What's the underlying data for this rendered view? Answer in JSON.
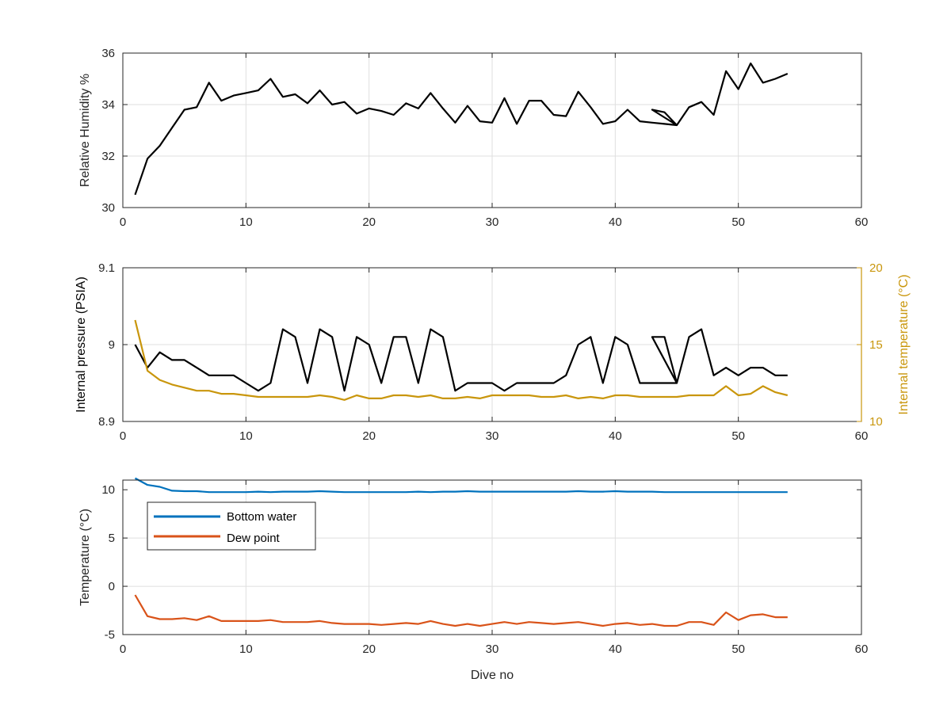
{
  "colors": {
    "black_series": "#000000",
    "internal_temp": "#c9960c",
    "internal_temp_axis": "#c9960c",
    "bottom_water": "#0072bd",
    "dew_point": "#d95319",
    "grid": "#dfdfdf",
    "axis": "#262626"
  },
  "chart_data": [
    {
      "type": "line",
      "xlabel": "",
      "ylabel": "Relative Humidity %",
      "xlim": [
        0,
        60
      ],
      "ylim": [
        30,
        36
      ],
      "xticks": [
        0,
        10,
        20,
        30,
        40,
        50,
        60
      ],
      "yticks": [
        30,
        32,
        34,
        36
      ],
      "grid": true,
      "series": [
        {
          "color_key": "black_series",
          "x": [
            1,
            2,
            3,
            4,
            5,
            6,
            7,
            8,
            9,
            10,
            11,
            12,
            13,
            14,
            15,
            16,
            17,
            18,
            19,
            20,
            21,
            22,
            23,
            24,
            25,
            26,
            27,
            28,
            29,
            30,
            31,
            32,
            33,
            34,
            35,
            36,
            37,
            38,
            39,
            40,
            41,
            42,
            43,
            44,
            45,
            43,
            44,
            45,
            46,
            47,
            48,
            49,
            50,
            51,
            52,
            53,
            54
          ],
          "y": [
            30.5,
            31.9,
            32.4,
            33.1,
            33.8,
            33.9,
            34.85,
            34.15,
            34.35,
            34.45,
            34.55,
            35.0,
            34.3,
            34.4,
            34.05,
            34.55,
            34.0,
            34.1,
            33.65,
            33.85,
            33.75,
            33.6,
            34.05,
            33.85,
            34.45,
            33.85,
            33.3,
            33.95,
            33.35,
            33.3,
            34.25,
            33.25,
            34.15,
            34.15,
            33.6,
            33.55,
            34.5,
            33.9,
            33.25,
            33.35,
            33.8,
            33.35,
            33.3,
            33.25,
            33.2,
            33.8,
            33.7,
            33.2,
            33.9,
            34.1,
            33.6,
            35.3,
            34.6,
            35.6,
            34.85,
            35.0,
            35.2
          ]
        }
      ]
    },
    {
      "type": "line",
      "xlabel": "",
      "ylabel": "Internal pressure (PSIA)",
      "y2label": "Internal temperature (°C)",
      "xlim": [
        0,
        60
      ],
      "ylim": [
        8.9,
        9.1
      ],
      "y2lim": [
        10,
        20
      ],
      "xticks": [
        0,
        10,
        20,
        30,
        40,
        50,
        60
      ],
      "yticks": [
        8.9,
        9,
        9.1
      ],
      "ytick_labels": [
        "8.9",
        "9",
        "9.1"
      ],
      "y2ticks": [
        10,
        15,
        20
      ],
      "grid": true,
      "series": [
        {
          "axis": "left",
          "color_key": "black_series",
          "x": [
            1,
            2,
            3,
            4,
            5,
            6,
            7,
            8,
            9,
            10,
            11,
            12,
            13,
            14,
            15,
            16,
            17,
            18,
            19,
            20,
            21,
            22,
            23,
            24,
            25,
            26,
            27,
            28,
            29,
            30,
            31,
            32,
            33,
            34,
            35,
            36,
            37,
            38,
            39,
            40,
            41,
            42,
            43,
            44,
            45,
            43,
            44,
            45,
            46,
            47,
            48,
            49,
            50,
            51,
            52,
            53,
            54
          ],
          "y": [
            9.0,
            8.97,
            8.99,
            8.98,
            8.98,
            8.97,
            8.96,
            8.96,
            8.96,
            8.95,
            8.94,
            8.95,
            9.02,
            9.01,
            8.95,
            9.02,
            9.01,
            8.94,
            9.01,
            9.0,
            8.95,
            9.01,
            9.01,
            8.95,
            9.02,
            9.01,
            8.94,
            8.95,
            8.95,
            8.95,
            8.94,
            8.95,
            8.95,
            8.95,
            8.95,
            8.96,
            9.0,
            9.01,
            8.95,
            9.01,
            9.0,
            8.95,
            8.95,
            8.95,
            8.95,
            9.01,
            9.01,
            8.95,
            9.01,
            9.02,
            8.96,
            8.97,
            8.96,
            8.97,
            8.97,
            8.96,
            8.96
          ]
        },
        {
          "axis": "right",
          "color_key": "internal_temp",
          "x": [
            1,
            2,
            3,
            4,
            5,
            6,
            7,
            8,
            9,
            10,
            11,
            12,
            13,
            14,
            15,
            16,
            17,
            18,
            19,
            20,
            21,
            22,
            23,
            24,
            25,
            26,
            27,
            28,
            29,
            30,
            31,
            32,
            33,
            34,
            35,
            36,
            37,
            38,
            39,
            40,
            41,
            42,
            43,
            44,
            45,
            46,
            47,
            48,
            49,
            50,
            51,
            52,
            53,
            54
          ],
          "y": [
            16.6,
            13.3,
            12.7,
            12.4,
            12.2,
            12.0,
            12.0,
            11.8,
            11.8,
            11.7,
            11.6,
            11.6,
            11.6,
            11.6,
            11.6,
            11.7,
            11.6,
            11.4,
            11.7,
            11.5,
            11.5,
            11.7,
            11.7,
            11.6,
            11.7,
            11.5,
            11.5,
            11.6,
            11.5,
            11.7,
            11.7,
            11.7,
            11.7,
            11.6,
            11.6,
            11.7,
            11.5,
            11.6,
            11.5,
            11.7,
            11.7,
            11.6,
            11.6,
            11.6,
            11.6,
            11.7,
            11.7,
            11.7,
            12.3,
            11.7,
            11.8,
            12.3,
            11.9,
            11.7
          ]
        }
      ]
    },
    {
      "type": "line",
      "xlabel": "Dive no",
      "ylabel": "Temperature (°C)",
      "xlim": [
        0,
        60
      ],
      "ylim": [
        -5,
        11
      ],
      "xticks": [
        0,
        10,
        20,
        30,
        40,
        50,
        60
      ],
      "yticks": [
        -5,
        0,
        5,
        10
      ],
      "grid": true,
      "legend": {
        "placement": "top-left"
      },
      "series": [
        {
          "name": "Bottom water",
          "color_key": "bottom_water",
          "x": [
            1,
            2,
            3,
            4,
            5,
            6,
            7,
            8,
            9,
            10,
            11,
            12,
            13,
            14,
            15,
            16,
            17,
            18,
            19,
            20,
            21,
            22,
            23,
            24,
            25,
            26,
            27,
            28,
            29,
            30,
            31,
            32,
            33,
            34,
            35,
            36,
            37,
            38,
            39,
            40,
            41,
            42,
            43,
            44,
            45,
            46,
            47,
            48,
            49,
            50,
            51,
            52,
            53,
            54
          ],
          "y": [
            11.2,
            10.5,
            10.3,
            9.9,
            9.85,
            9.85,
            9.75,
            9.75,
            9.75,
            9.75,
            9.8,
            9.75,
            9.8,
            9.8,
            9.8,
            9.85,
            9.8,
            9.75,
            9.75,
            9.75,
            9.75,
            9.75,
            9.75,
            9.8,
            9.75,
            9.8,
            9.8,
            9.85,
            9.8,
            9.8,
            9.8,
            9.8,
            9.8,
            9.8,
            9.8,
            9.8,
            9.85,
            9.8,
            9.8,
            9.85,
            9.8,
            9.8,
            9.8,
            9.75,
            9.75,
            9.75,
            9.75,
            9.75,
            9.75,
            9.75,
            9.75,
            9.75,
            9.75,
            9.75
          ]
        },
        {
          "name": "Dew point",
          "color_key": "dew_point",
          "x": [
            1,
            2,
            3,
            4,
            5,
            6,
            7,
            8,
            9,
            10,
            11,
            12,
            13,
            14,
            15,
            16,
            17,
            18,
            19,
            20,
            21,
            22,
            23,
            24,
            25,
            26,
            27,
            28,
            29,
            30,
            31,
            32,
            33,
            34,
            35,
            36,
            37,
            38,
            39,
            40,
            41,
            42,
            43,
            44,
            45,
            46,
            47,
            48,
            49,
            50,
            51,
            52,
            53,
            54
          ],
          "y": [
            -0.9,
            -3.1,
            -3.4,
            -3.4,
            -3.3,
            -3.5,
            -3.1,
            -3.6,
            -3.6,
            -3.6,
            -3.6,
            -3.5,
            -3.7,
            -3.7,
            -3.7,
            -3.6,
            -3.8,
            -3.9,
            -3.9,
            -3.9,
            -4.0,
            -3.9,
            -3.8,
            -3.9,
            -3.6,
            -3.9,
            -4.1,
            -3.9,
            -4.1,
            -3.9,
            -3.7,
            -3.9,
            -3.7,
            -3.8,
            -3.9,
            -3.8,
            -3.7,
            -3.9,
            -4.1,
            -3.9,
            -3.8,
            -4.0,
            -3.9,
            -4.1,
            -4.1,
            -3.7,
            -3.7,
            -4.0,
            -2.7,
            -3.5,
            -3.0,
            -2.9,
            -3.2,
            -3.2
          ]
        }
      ]
    }
  ]
}
